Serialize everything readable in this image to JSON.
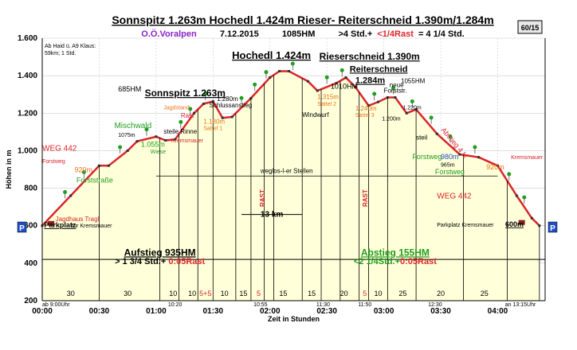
{
  "header": {
    "title": "Sonnspitz 1.263m Hochedl 1.424m Rieser- Reiterschneid 1.390m/1.284m",
    "subtitle_org": "O.Ö.Voralpen",
    "subtitle_date": "7.12.2015",
    "subtitle_hm": "1085HM",
    "subtitle_time_pre": ">4 Std.+",
    "subtitle_rast": "<1/4Rast",
    "subtitle_time_post": "= 4 1/4 Std.",
    "page_badge": "60/15"
  },
  "colors": {
    "fill": "#ffffd9",
    "line": "#d9262c",
    "green": "#1f9e1f",
    "orange": "#e8731d",
    "blue": "#1f4fc8",
    "purple": "#8b21c9",
    "axis": "#000000",
    "grid": "#cccccc"
  },
  "chart_data": {
    "type": "area",
    "xlabel": "Zeit in Stunden",
    "ylabel": "Höhen in m",
    "ylim": [
      200,
      1600
    ],
    "yticks": [
      200,
      400,
      600,
      800,
      "1.000",
      "1.200",
      "1.400",
      "1.600"
    ],
    "xlim": [
      0,
      265
    ],
    "xticks": [
      {
        "m": 0,
        "label": "00:00"
      },
      {
        "m": 30,
        "label": "00:30"
      },
      {
        "m": 60,
        "label": "01:00"
      },
      {
        "m": 90,
        "label": "01:30"
      },
      {
        "m": 120,
        "label": "02:00"
      },
      {
        "m": 150,
        "label": "02:30"
      },
      {
        "m": 180,
        "label": "03:00"
      },
      {
        "m": 210,
        "label": "03:30"
      },
      {
        "m": 240,
        "label": "04:00"
      }
    ],
    "profile": [
      {
        "m": 0,
        "h": 600
      },
      {
        "m": 15,
        "h": 760
      },
      {
        "m": 30,
        "h": 920
      },
      {
        "m": 35,
        "h": 920
      },
      {
        "m": 45,
        "h": 1000
      },
      {
        "m": 50,
        "h": 1050
      },
      {
        "m": 60,
        "h": 1075
      },
      {
        "m": 65,
        "h": 1055
      },
      {
        "m": 70,
        "h": 1060
      },
      {
        "m": 80,
        "h": 1200
      },
      {
        "m": 85,
        "h": 1250
      },
      {
        "m": 90,
        "h": 1263
      },
      {
        "m": 95,
        "h": 1175
      },
      {
        "m": 100,
        "h": 1180
      },
      {
        "m": 110,
        "h": 1280
      },
      {
        "m": 120,
        "h": 1390
      },
      {
        "m": 125,
        "h": 1424
      },
      {
        "m": 130,
        "h": 1424
      },
      {
        "m": 140,
        "h": 1370
      },
      {
        "m": 145,
        "h": 1320
      },
      {
        "m": 155,
        "h": 1360
      },
      {
        "m": 160,
        "h": 1390
      },
      {
        "m": 165,
        "h": 1340
      },
      {
        "m": 172,
        "h": 1240
      },
      {
        "m": 177,
        "h": 1260
      },
      {
        "m": 182,
        "h": 1284
      },
      {
        "m": 186,
        "h": 1284
      },
      {
        "m": 192,
        "h": 1200
      },
      {
        "m": 197,
        "h": 1220
      },
      {
        "m": 208,
        "h": 1090
      },
      {
        "m": 220,
        "h": 980
      },
      {
        "m": 230,
        "h": 965
      },
      {
        "m": 240,
        "h": 920
      },
      {
        "m": 250,
        "h": 760
      },
      {
        "m": 258,
        "h": 640
      },
      {
        "m": 262,
        "h": 600
      }
    ],
    "segments": [
      {
        "m": 15,
        "label": "30"
      },
      {
        "m": 45,
        "label": "30"
      },
      {
        "m": 69,
        "label": "10"
      },
      {
        "m": 79,
        "label": "10"
      },
      {
        "m": 86,
        "label": "5+5"
      },
      {
        "m": 96,
        "label": "10"
      },
      {
        "m": 106,
        "label": "15"
      },
      {
        "m": 114,
        "label": "5"
      },
      {
        "m": 127,
        "label": "15"
      },
      {
        "m": 142,
        "label": "15"
      },
      {
        "m": 159,
        "label": "20"
      },
      {
        "m": 170,
        "label": "5"
      },
      {
        "m": 177,
        "label": "10"
      },
      {
        "m": 190,
        "label": "25"
      },
      {
        "m": 210,
        "label": "20"
      },
      {
        "m": 233,
        "label": "25"
      }
    ],
    "segment_lines": [
      30,
      62,
      72,
      82,
      90,
      102,
      110,
      117,
      122,
      137,
      147,
      157,
      167,
      172,
      182,
      197,
      222,
      245,
      262
    ],
    "time_marks": [
      {
        "m": 0,
        "label": "ab 9:00Uhr"
      },
      {
        "m": 70,
        "label": "10:20"
      },
      {
        "m": 115,
        "label": "10:55"
      },
      {
        "m": 148,
        "label": "11:30"
      },
      {
        "m": 170,
        "label": "11:50"
      },
      {
        "m": 207,
        "label": "12:30"
      },
      {
        "m": 252,
        "label": "an 13:15Uhr"
      }
    ],
    "rast_marks": [
      {
        "m": 116,
        "label": "RAST"
      },
      {
        "m": 170,
        "label": "RAST"
      }
    ],
    "annotations": [
      {
        "m": 38,
        "h": 1120,
        "text": "Mischwald",
        "color": "green",
        "size": 10
      },
      {
        "m": 18,
        "h": 830,
        "text": "Forststraße",
        "color": "green",
        "size": 9
      },
      {
        "m": 0,
        "h": 1000,
        "text": "WEG 442",
        "color": "line",
        "size": 10
      },
      {
        "m": 0,
        "h": 935,
        "text": "Forstweg",
        "color": "line",
        "size": 7
      },
      {
        "m": 17,
        "h": 885,
        "text": "920m",
        "color": "orange",
        "size": 9
      },
      {
        "m": 40,
        "h": 1075,
        "text": "1075m",
        "color": "axis",
        "size": 7
      },
      {
        "m": 52,
        "h": 1020,
        "text": "1.055m",
        "color": "green",
        "size": 9
      },
      {
        "m": 57,
        "h": 985,
        "text": "Wiese",
        "color": "green",
        "size": 7
      },
      {
        "m": 64,
        "h": 1220,
        "text": "Jagdstand",
        "color": "orange",
        "size": 7
      },
      {
        "m": 73,
        "h": 1175,
        "text": "Rast",
        "color": "line",
        "size": 8
      },
      {
        "m": 64,
        "h": 1090,
        "text": "steile Rinne",
        "color": "axis",
        "size": 8
      },
      {
        "m": 68,
        "h": 1045,
        "text": "Kremsmauer",
        "color": "line",
        "size": 7
      },
      {
        "m": 85,
        "h": 1145,
        "text": "1.180m",
        "color": "orange",
        "size": 8
      },
      {
        "m": 85,
        "h": 1110,
        "text": "Sattel 1",
        "color": "orange",
        "size": 7
      },
      {
        "m": 92,
        "h": 1265,
        "text": "1.280m",
        "color": "axis",
        "size": 8
      },
      {
        "m": 88,
        "h": 1230,
        "text": "Schlussanstieg",
        "color": "axis",
        "size": 8
      },
      {
        "m": 40,
        "h": 1315,
        "text": "685HM",
        "color": "axis",
        "size": 9
      },
      {
        "m": 145,
        "h": 1275,
        "text": "1.315m",
        "color": "orange",
        "size": 8
      },
      {
        "m": 145,
        "h": 1240,
        "text": "Sattel 2",
        "color": "orange",
        "size": 7
      },
      {
        "m": 137,
        "h": 1180,
        "text": "Windwurf",
        "color": "axis",
        "size": 8
      },
      {
        "m": 152,
        "h": 1330,
        "text": "1010HM",
        "color": "axis",
        "size": 9
      },
      {
        "m": 165,
        "h": 1215,
        "text": "1.240m",
        "color": "orange",
        "size": 8
      },
      {
        "m": 165,
        "h": 1180,
        "text": "Sattel 3",
        "color": "orange",
        "size": 7
      },
      {
        "m": 183,
        "h": 1340,
        "text": "neue",
        "color": "axis",
        "size": 8
      },
      {
        "m": 180,
        "h": 1310,
        "text": "Forststr.",
        "color": "axis",
        "size": 8
      },
      {
        "m": 190,
        "h": 1220,
        "text": "1.220m",
        "color": "axis",
        "size": 7
      },
      {
        "m": 179,
        "h": 1160,
        "text": "1.200m",
        "color": "axis",
        "size": 7
      },
      {
        "m": 197,
        "h": 1060,
        "text": "steil",
        "color": "axis",
        "size": 8
      },
      {
        "m": 195,
        "h": 955,
        "text": "Forstweg",
        "color": "green",
        "size": 9
      },
      {
        "m": 210,
        "h": 955,
        "text": "980m",
        "color": "blue",
        "size": 9
      },
      {
        "m": 210,
        "h": 915,
        "text": "965m",
        "color": "axis",
        "size": 7
      },
      {
        "m": 207,
        "h": 875,
        "text": "Forstweg",
        "color": "green",
        "size": 9
      },
      {
        "m": 234,
        "h": 900,
        "text": "920m",
        "color": "orange",
        "size": 9
      },
      {
        "m": 247,
        "h": 955,
        "text": "Kremsmauer",
        "color": "line",
        "size": 7
      },
      {
        "m": 208,
        "h": 745,
        "text": "WEG 442",
        "color": "line",
        "size": 10
      },
      {
        "m": 115,
        "h": 880,
        "text": "weglos-l-er Stellen",
        "color": "axis",
        "size": 8
      }
    ],
    "peaks": [
      {
        "m": 54,
        "h": 1290,
        "text": "Sonnspitz 1.263m",
        "size": 12
      },
      {
        "m": 100,
        "h": 1490,
        "text": "Hochedl 1.424m",
        "size": 13
      },
      {
        "m": 146,
        "h": 1485,
        "text": "Rieserschneid  1.390m",
        "size": 12
      },
      {
        "m": 162,
        "h": 1420,
        "text": "Reiterschneid",
        "size": 11
      },
      {
        "m": 165,
        "h": 1360,
        "text": "1.284m",
        "size": 11
      }
    ],
    "extra_hm": {
      "m": 189,
      "h": 1360,
      "text": "1055HM"
    },
    "direction_label": {
      "m": 210,
      "h": 1110,
      "text": "Abstieg 4 H"
    },
    "start_box": {
      "text": "Jagdhaus Tragl",
      "sub": "Parkplatz",
      "sub2": "zur Kremsmauer"
    },
    "end_box": {
      "text": "Parkplatz Kremsmauer",
      "alt": "600m"
    },
    "distance": "13 km",
    "aufstieg_title": "Aufstieg 935HM",
    "aufstieg_time_pre": "> 1 3/4 Std.+",
    "aufstieg_time_rast": "0:05Rast",
    "abstieg_title": "Abstieg 155HM",
    "abstieg_time_pre": "<2 1/4Std.+",
    "abstieg_time_rast": "0:05Rast",
    "p_label": "P"
  }
}
